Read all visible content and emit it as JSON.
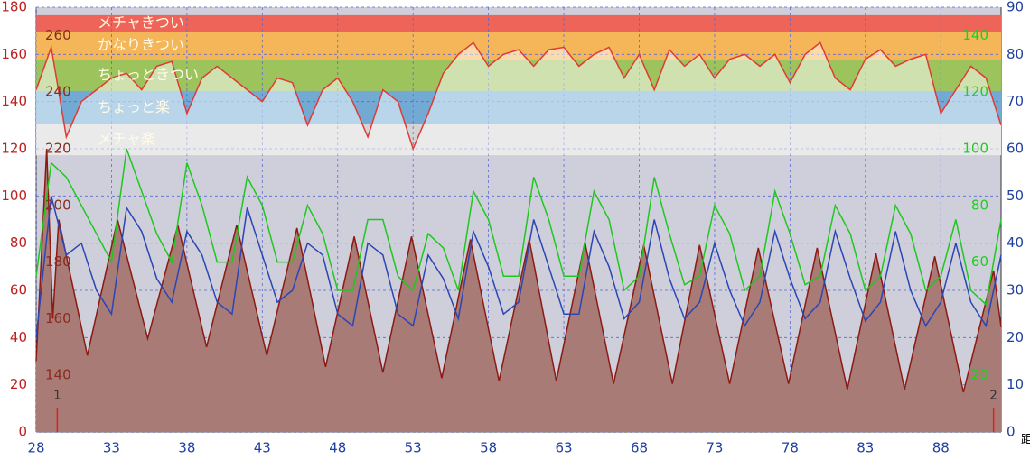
{
  "chart_data": {
    "type": "line",
    "xlim": [
      28,
      92
    ],
    "xticks": [
      28,
      33,
      38,
      43,
      48,
      53,
      58,
      63,
      68,
      73,
      78,
      83,
      88
    ],
    "xlabel": "距",
    "ylim": [
      0,
      180
    ],
    "yticks": [
      0,
      20,
      40,
      60,
      80,
      100,
      120,
      140,
      160,
      180
    ],
    "y2lim": [
      0,
      90
    ],
    "y2ticks": [
      0,
      10,
      20,
      30,
      40,
      50,
      60,
      70,
      80,
      90
    ],
    "y3lim": [
      120,
      270
    ],
    "y3ticks": [
      140,
      160,
      180,
      200,
      220,
      240,
      260
    ],
    "y3color": "#8b2a1e",
    "y4lim": [
      0,
      150
    ],
    "y4ticks": [
      20,
      60,
      80,
      100,
      120,
      140
    ],
    "y4color": "#22cc22",
    "grid": true,
    "zones": [
      {
        "label": "メチャきつい",
        "from": 169.6,
        "to": 176.6,
        "color": "#ef6458"
      },
      {
        "label": "かなりきつい",
        "from": 157.9,
        "to": 169.6,
        "color": "#f5b65a"
      },
      {
        "label": "ちょっときつい",
        "from": 144.5,
        "to": 157.9,
        "color": "#9dc35c"
      },
      {
        "label": "ちょっと楽",
        "from": 130.3,
        "to": 144.5,
        "color": "#72aad4"
      },
      {
        "label": "メチャ楽",
        "from": 117.3,
        "to": 130.3,
        "color": "#d4d4d4"
      }
    ],
    "laps": [
      {
        "label": "1",
        "x": 29.4
      },
      {
        "label": "2",
        "x": 91.5
      }
    ],
    "x": [
      28,
      29,
      30,
      31,
      32,
      33,
      34,
      35,
      36,
      37,
      38,
      39,
      40,
      41,
      42,
      43,
      44,
      45,
      46,
      47,
      48,
      49,
      50,
      51,
      52,
      53,
      54,
      55,
      56,
      57,
      58,
      59,
      60,
      61,
      62,
      63,
      64,
      65,
      66,
      67,
      68,
      69,
      70,
      71,
      72,
      73,
      74,
      75,
      76,
      77,
      78,
      79,
      80,
      81,
      82,
      83,
      84,
      85,
      86,
      87,
      88,
      89,
      90,
      91,
      92
    ],
    "series": [
      {
        "style": "area-top",
        "axis": "y",
        "color": "#e03a34",
        "values": [
          145,
          163,
          125,
          140,
          145,
          150,
          152,
          145,
          155,
          157,
          135,
          150,
          155,
          150,
          145,
          140,
          150,
          148,
          130,
          145,
          150,
          140,
          125,
          145,
          140,
          120,
          135,
          152,
          160,
          165,
          155,
          160,
          162,
          155,
          162,
          163,
          155,
          160,
          163,
          150,
          160,
          145,
          162,
          155,
          160,
          150,
          158,
          160,
          155,
          160,
          148,
          160,
          165,
          150,
          145,
          158,
          162,
          155,
          158,
          160,
          135,
          145,
          155,
          150,
          130
        ]
      },
      {
        "style": "area",
        "axis": "y3",
        "color": "#8b1a12",
        "fill": "#a87b77",
        "x": [
          28,
          28.7,
          29.1,
          29.5,
          31.4,
          33.4,
          35.4,
          37.4,
          39.3,
          41.3,
          43.3,
          45.3,
          47.2,
          49.1,
          51,
          52.9,
          54.9,
          56.8,
          58.7,
          60.7,
          62.5,
          64.4,
          66.3,
          68.3,
          70.2,
          72,
          74,
          75.9,
          77.9,
          79.8,
          81.8,
          83.7,
          85.6,
          87.6,
          89.5,
          91.5,
          92
        ],
        "values": [
          145,
          220,
          160,
          195,
          147,
          195,
          153,
          193,
          150,
          193,
          147,
          192,
          143,
          189,
          141,
          189,
          139,
          188,
          138,
          188,
          138,
          187,
          137,
          186,
          137,
          186,
          137,
          185,
          137,
          185,
          135,
          183,
          135,
          182,
          134,
          177,
          157
        ]
      },
      {
        "style": "line",
        "axis": "y",
        "color": "#2a46b4",
        "values": [
          40,
          100,
          75,
          80,
          60,
          50,
          95,
          85,
          65,
          55,
          85,
          75,
          55,
          50,
          95,
          75,
          55,
          60,
          80,
          75,
          50,
          45,
          80,
          75,
          50,
          45,
          75,
          65,
          48,
          85,
          70,
          50,
          55,
          90,
          70,
          50,
          50,
          85,
          70,
          48,
          55,
          90,
          65,
          48,
          55,
          80,
          60,
          45,
          55,
          85,
          65,
          48,
          55,
          85,
          65,
          47,
          55,
          85,
          60,
          45,
          55,
          80,
          55,
          45,
          75
        ]
      },
      {
        "style": "line",
        "axis": "y4",
        "color": "#1ec81e",
        "values": [
          55,
          95,
          90,
          80,
          70,
          60,
          100,
          85,
          70,
          60,
          95,
          80,
          60,
          60,
          90,
          80,
          60,
          60,
          80,
          70,
          50,
          50,
          75,
          75,
          55,
          50,
          70,
          65,
          50,
          85,
          75,
          55,
          55,
          90,
          75,
          55,
          55,
          85,
          75,
          50,
          55,
          90,
          70,
          52,
          55,
          80,
          70,
          50,
          55,
          85,
          70,
          52,
          55,
          80,
          70,
          50,
          55,
          80,
          70,
          50,
          55,
          75,
          50,
          45,
          75
        ]
      }
    ]
  }
}
